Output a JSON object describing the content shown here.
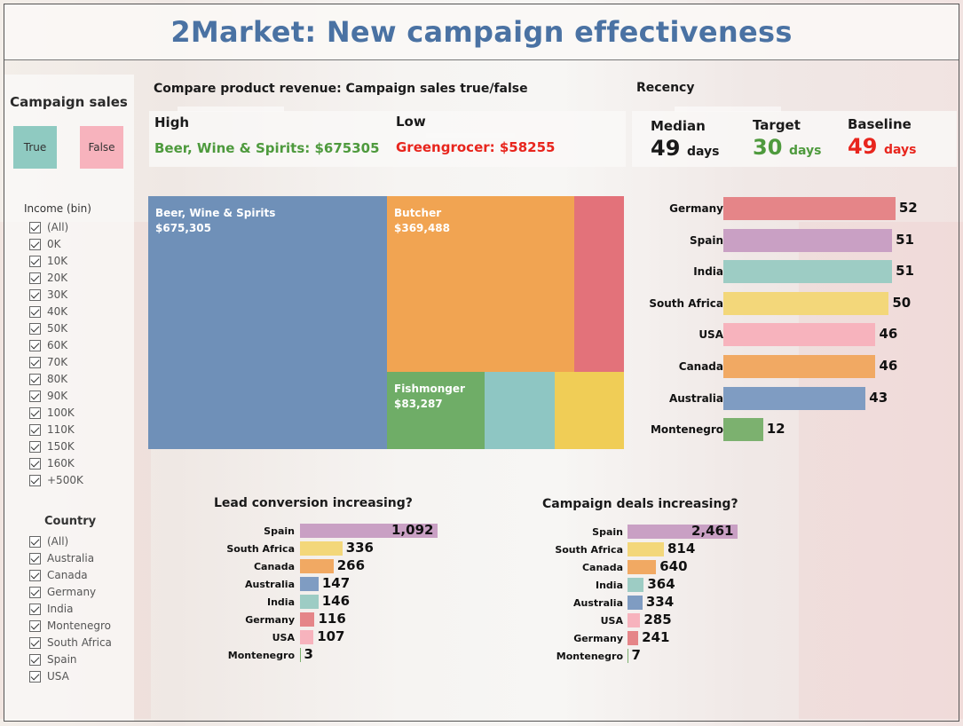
{
  "title": "2Market: New campaign effectiveness",
  "campaign_sales": {
    "title": "Campaign sales",
    "legend": [
      {
        "label": "True",
        "color": "#8fcac1"
      },
      {
        "label": "False",
        "color": "#f7b3bd"
      }
    ]
  },
  "income_filter": {
    "title": "Income (bin)",
    "items": [
      "(All)",
      "0K",
      "10K",
      "20K",
      "30K",
      "40K",
      "50K",
      "60K",
      "70K",
      "80K",
      "90K",
      "100K",
      "110K",
      "150K",
      "160K",
      "+500K"
    ]
  },
  "country_filter": {
    "title": "Country",
    "items": [
      "(All)",
      "Australia",
      "Canada",
      "Germany",
      "India",
      "Montenegro",
      "South Africa",
      "Spain",
      "USA"
    ]
  },
  "revenue": {
    "header": "Compare product revenue: Campaign sales true/false",
    "high_label": "High",
    "high_value": "Beer, Wine & Spirits: $675305",
    "low_label": "Low",
    "low_value": "Greengrocer: $58255",
    "high_color": "#4e9a3d",
    "low_color": "#e8251d"
  },
  "recency": {
    "header": "Recency",
    "median_label": "Median",
    "median_value": "49",
    "median_unit": "days",
    "target_label": "Target",
    "target_value": "30",
    "target_unit": "days",
    "baseline_label": "Baseline",
    "baseline_value": "49",
    "baseline_unit": "days",
    "target_color": "#4e9a3d",
    "baseline_color": "#e8251d"
  },
  "treemap": {
    "tiles": [
      {
        "name": "Beer, Wine & Spirits",
        "value": "$675,305",
        "color": "#6f90b8"
      },
      {
        "name": "Butcher",
        "value": "$369,488",
        "color": "#f1a452"
      },
      {
        "name": "",
        "value": "",
        "color": "#e3727a"
      },
      {
        "name": "Fishmonger",
        "value": "$83,287",
        "color": "#6fad67"
      },
      {
        "name": "",
        "value": "",
        "color": "#8ec6c3"
      },
      {
        "name": "",
        "value": "",
        "color": "#f0cd56"
      }
    ]
  },
  "chart_data": [
    {
      "type": "bar",
      "title": "",
      "orientation": "horizontal",
      "categories": [
        "Germany",
        "Spain",
        "India",
        "South Africa",
        "USA",
        "Canada",
        "Australia",
        "Montenegro"
      ],
      "values": [
        52,
        51,
        51,
        50,
        46,
        46,
        43,
        12
      ],
      "colors": [
        "#e58588",
        "#c9a0c4",
        "#9dccc4",
        "#f3d77a",
        "#f7b3bd",
        "#f1a963",
        "#7f9cc2",
        "#7cb16f"
      ]
    },
    {
      "type": "bar",
      "title": "Lead conversion increasing?",
      "orientation": "horizontal",
      "categories": [
        "Spain",
        "South Africa",
        "Canada",
        "Australia",
        "India",
        "Germany",
        "USA",
        "Montenegro"
      ],
      "values": [
        1092,
        336,
        266,
        147,
        146,
        116,
        107,
        3
      ],
      "labels": [
        "1,092",
        "336",
        "266",
        "147",
        "146",
        "116",
        "107",
        "3"
      ],
      "colors": [
        "#c9a0c4",
        "#f3d77a",
        "#f1a963",
        "#7f9cc2",
        "#9dccc4",
        "#e58588",
        "#f7b3bd",
        "#7cb16f"
      ]
    },
    {
      "type": "bar",
      "title": "Campaign deals increasing?",
      "orientation": "horizontal",
      "categories": [
        "Spain",
        "South Africa",
        "Canada",
        "India",
        "Australia",
        "USA",
        "Germany",
        "Montenegro"
      ],
      "values": [
        2461,
        814,
        640,
        364,
        334,
        285,
        241,
        7
      ],
      "labels": [
        "2,461",
        "814",
        "640",
        "364",
        "334",
        "285",
        "241",
        "7"
      ],
      "colors": [
        "#c9a0c4",
        "#f3d77a",
        "#f1a963",
        "#9dccc4",
        "#7f9cc2",
        "#f7b3bd",
        "#e58588",
        "#7cb16f"
      ]
    }
  ]
}
